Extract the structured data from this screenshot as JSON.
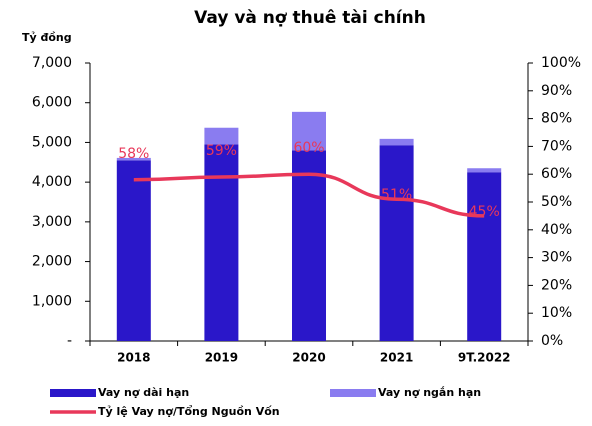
{
  "chart_data": {
    "type": "bar",
    "stacked": true,
    "title": "Vay và nợ thuê tài chính",
    "y_label": "Tỷ đồng",
    "categories": [
      "2018",
      "2019",
      "2020",
      "2021",
      "9T.2022"
    ],
    "series": [
      {
        "name": "Vay nợ dài hạn",
        "color": "#2a17c9",
        "values": [
          4550,
          4950,
          4800,
          4930,
          4250
        ]
      },
      {
        "name": "Vay nợ ngắn hạn",
        "color": "#8a7cf0",
        "values": [
          60,
          420,
          970,
          160,
          100
        ]
      },
      {
        "name": "Tỷ lệ Vay nợ/Tổng Nguồn Vốn",
        "color": "#e8385a",
        "type": "line",
        "axis": "y2",
        "values": [
          58,
          59,
          60,
          51,
          45
        ],
        "value_labels": [
          "58%",
          "59%",
          "60%",
          "51%",
          "45%"
        ]
      }
    ],
    "ylim": [
      0,
      7000
    ],
    "yticks": [
      {
        "value": 0,
        "label": "-"
      },
      {
        "value": 1000,
        "label": "1,000"
      },
      {
        "value": 2000,
        "label": "2,000"
      },
      {
        "value": 3000,
        "label": "3,000"
      },
      {
        "value": 4000,
        "label": "4,000"
      },
      {
        "value": 5000,
        "label": "5,000"
      },
      {
        "value": 6000,
        "label": "6,000"
      },
      {
        "value": 7000,
        "label": "7,000"
      }
    ],
    "y2lim": [
      0,
      100
    ],
    "y2ticks": [
      {
        "value": 0,
        "label": "0%"
      },
      {
        "value": 10,
        "label": "10%"
      },
      {
        "value": 20,
        "label": "20%"
      },
      {
        "value": 30,
        "label": "30%"
      },
      {
        "value": 40,
        "label": "40%"
      },
      {
        "value": 50,
        "label": "50%"
      },
      {
        "value": 60,
        "label": "60%"
      },
      {
        "value": 70,
        "label": "70%"
      },
      {
        "value": 80,
        "label": "80%"
      },
      {
        "value": 90,
        "label": "90%"
      },
      {
        "value": 100,
        "label": "100%"
      }
    ],
    "legend": "bottom"
  }
}
